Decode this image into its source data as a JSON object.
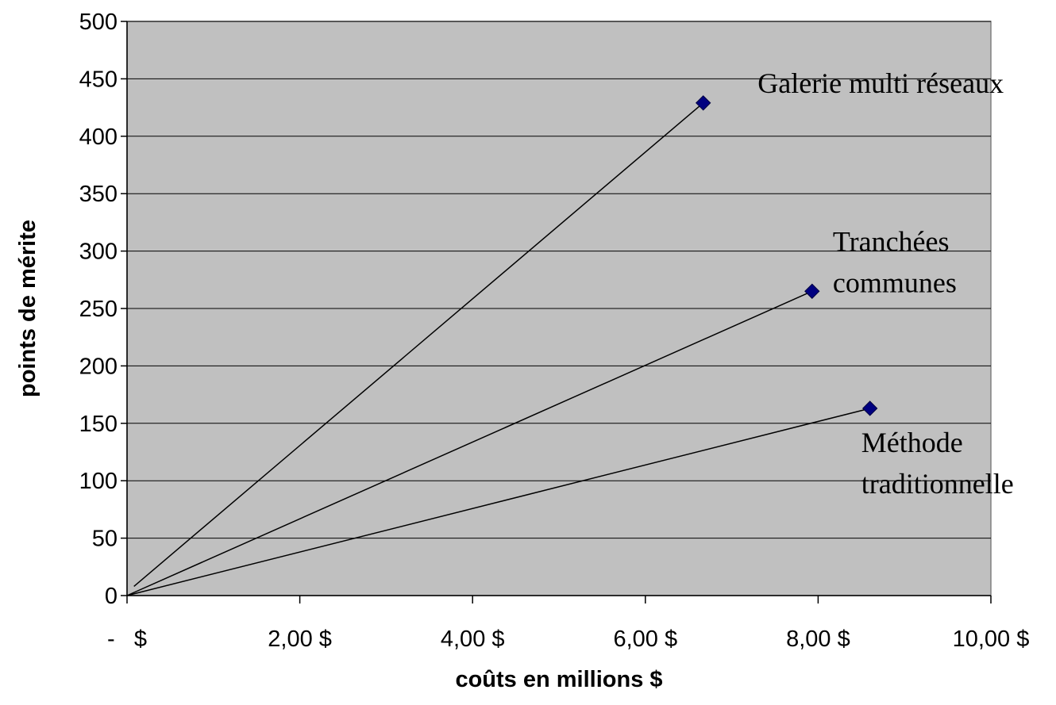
{
  "chart_data": {
    "type": "scatter",
    "title": "",
    "xlabel": "coûts en millions $",
    "ylabel": "points de mérite",
    "xlim": [
      0,
      10
    ],
    "ylim": [
      0,
      500
    ],
    "x_ticks": [
      {
        "value": 0,
        "label": "-   $"
      },
      {
        "value": 2,
        "label": "2,00 $"
      },
      {
        "value": 4,
        "label": "4,00 $"
      },
      {
        "value": 6,
        "label": "6,00 $"
      },
      {
        "value": 8,
        "label": "8,00 $"
      },
      {
        "value": 10,
        "label": "10,00 $"
      }
    ],
    "y_ticks": [
      0,
      50,
      100,
      150,
      200,
      250,
      300,
      350,
      400,
      450,
      500
    ],
    "grid": "horizontal",
    "plot_background": "#c0c0c0",
    "marker_color": "#000080",
    "marker": "diamond",
    "points": [
      {
        "name": "Galerie multi réseaux",
        "x": 6.67,
        "y": 429
      },
      {
        "name": "Tranchées communes",
        "x": 7.93,
        "y": 265
      },
      {
        "name": "Méthode traditionnelle",
        "x": 8.6,
        "y": 163
      }
    ],
    "lines_from_origin": [
      {
        "from": [
          0.08,
          8
        ],
        "to": [
          6.67,
          429
        ]
      },
      {
        "from": [
          0,
          0
        ],
        "to": [
          7.93,
          265
        ]
      },
      {
        "from": [
          0,
          0
        ],
        "to": [
          8.6,
          163
        ]
      }
    ],
    "annotations": [
      {
        "lines": [
          "Galerie multi réseaux"
        ],
        "x": 7.3,
        "y": 438
      },
      {
        "lines": [
          "Tranchées",
          "communes"
        ],
        "x": 8.17,
        "y": 300
      },
      {
        "lines": [
          "Méthode",
          "traditionnelle"
        ],
        "x": 8.5,
        "y": 125
      }
    ]
  }
}
